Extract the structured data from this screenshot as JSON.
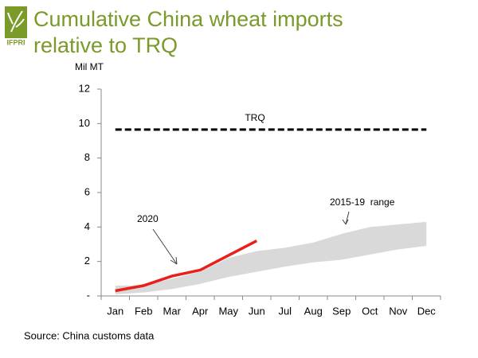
{
  "logo": "IFPRI",
  "chart_data": {
    "type": "line",
    "title": [
      "Cumulative China wheat imports",
      "relative to TRQ"
    ],
    "y_label": "Mil MT",
    "source": "Source: China customs data",
    "categories": [
      "Jan",
      "Feb",
      "Mar",
      "Apr",
      "May",
      "Jun",
      "Jul",
      "Aug",
      "Sep",
      "Oct",
      "Nov",
      "Dec"
    ],
    "ylim": [
      0,
      12
    ],
    "yticks": [
      {
        "value": 0,
        "label": "-"
      },
      2,
      4,
      6,
      8,
      10,
      12
    ],
    "reference": {
      "label": "TRQ",
      "value": 9.65,
      "color": "#000000"
    },
    "series": [
      {
        "name": "2020",
        "color": "#e8201c",
        "values": [
          0.3,
          0.6,
          1.15,
          1.5,
          2.35,
          3.2,
          null,
          null,
          null,
          null,
          null,
          null
        ]
      },
      {
        "name": "2015-19  range",
        "color": "#d9d9d9",
        "upper": [
          0.6,
          0.6,
          1.0,
          1.4,
          2.2,
          2.6,
          2.8,
          3.1,
          3.6,
          4.0,
          4.15,
          4.3
        ],
        "lower": [
          0.1,
          0.2,
          0.4,
          0.7,
          1.1,
          1.4,
          1.7,
          1.95,
          2.1,
          2.4,
          2.7,
          2.9
        ]
      }
    ]
  }
}
